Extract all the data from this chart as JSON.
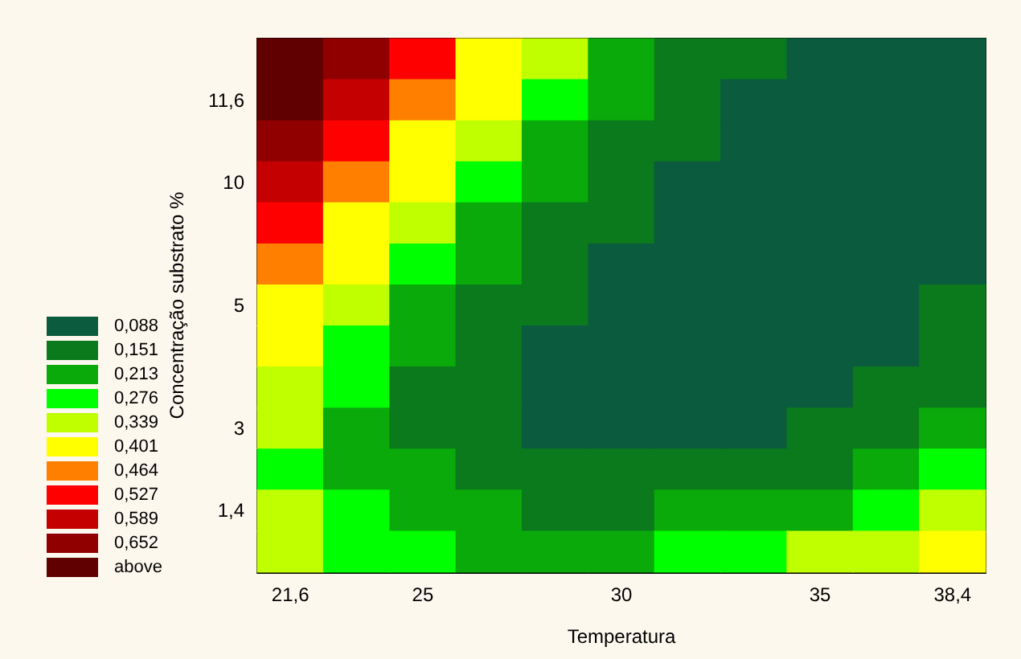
{
  "chart_data": {
    "type": "heatmap",
    "xlabel": "Temperatura",
    "ylabel": "Concentração substrato %",
    "categories": [
      "21,6",
      null,
      "25",
      null,
      null,
      "30",
      null,
      null,
      "35",
      null,
      "38,4"
    ],
    "y_categories": [
      null,
      "11,6",
      null,
      "10",
      null,
      null,
      "5",
      null,
      null,
      "3",
      null,
      "1,4",
      null
    ],
    "cells": [
      [
        0.714,
        0.652,
        0.527,
        0.401,
        0.339,
        0.213,
        0.151,
        0.151,
        0.088,
        0.088,
        0.088
      ],
      [
        0.714,
        0.589,
        0.464,
        0.401,
        0.276,
        0.213,
        0.151,
        0.088,
        0.088,
        0.088,
        0.088
      ],
      [
        0.652,
        0.527,
        0.401,
        0.339,
        0.213,
        0.151,
        0.151,
        0.088,
        0.088,
        0.088,
        0.088
      ],
      [
        0.589,
        0.464,
        0.401,
        0.276,
        0.213,
        0.151,
        0.088,
        0.088,
        0.088,
        0.088,
        0.088
      ],
      [
        0.527,
        0.401,
        0.339,
        0.213,
        0.151,
        0.151,
        0.088,
        0.088,
        0.088,
        0.088,
        0.088
      ],
      [
        0.464,
        0.401,
        0.276,
        0.213,
        0.151,
        0.088,
        0.088,
        0.088,
        0.088,
        0.088,
        0.088
      ],
      [
        0.401,
        0.339,
        0.213,
        0.151,
        0.151,
        0.088,
        0.088,
        0.088,
        0.088,
        0.088,
        0.151
      ],
      [
        0.401,
        0.276,
        0.213,
        0.151,
        0.088,
        0.088,
        0.088,
        0.088,
        0.088,
        0.088,
        0.151
      ],
      [
        0.339,
        0.276,
        0.151,
        0.151,
        0.088,
        0.088,
        0.088,
        0.088,
        0.088,
        0.151,
        0.151
      ],
      [
        0.339,
        0.213,
        0.151,
        0.151,
        0.088,
        0.088,
        0.088,
        0.088,
        0.151,
        0.151,
        0.213
      ],
      [
        0.276,
        0.213,
        0.213,
        0.151,
        0.151,
        0.151,
        0.151,
        0.151,
        0.151,
        0.213,
        0.276
      ],
      [
        0.339,
        0.276,
        0.213,
        0.213,
        0.151,
        0.151,
        0.213,
        0.213,
        0.213,
        0.276,
        0.339
      ],
      [
        0.339,
        0.276,
        0.276,
        0.213,
        0.213,
        0.213,
        0.276,
        0.276,
        0.339,
        0.339,
        0.401
      ]
    ],
    "cticks": [
      {
        "value": 0.088,
        "label": "0,088"
      },
      {
        "value": 0.151,
        "label": "0,151"
      },
      {
        "value": 0.213,
        "label": "0,213"
      },
      {
        "value": 0.276,
        "label": "0,276"
      },
      {
        "value": 0.339,
        "label": "0,339"
      },
      {
        "value": 0.401,
        "label": "0,401"
      },
      {
        "value": 0.464,
        "label": "0,464"
      },
      {
        "value": 0.527,
        "label": "0,527"
      },
      {
        "value": 0.589,
        "label": "0,589"
      },
      {
        "value": 0.652,
        "label": "0,652"
      },
      {
        "value": 0.714,
        "label": "above"
      }
    ],
    "colors": [
      "#0b5b3e",
      "#0a7a1c",
      "#0aaa0a",
      "#00ff00",
      "#c0ff00",
      "#ffff00",
      "#ff8000",
      "#ff0000",
      "#c40000",
      "#900000",
      "#600000"
    ],
    "grid": false
  }
}
